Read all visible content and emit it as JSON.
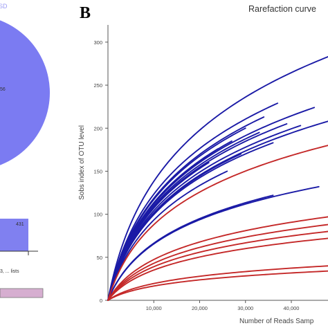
{
  "panel_label": "B",
  "left_panel": {
    "legend_fragment": "SD",
    "pie_value": "56",
    "bar_value": "431",
    "axis_caption": "3, ... lists",
    "pie_color": "#7b7bf2",
    "bar_color": "#8080f0",
    "strip_color": "#d6aed0"
  },
  "chart_data": {
    "type": "line",
    "title": "Rarefaction curve",
    "xlabel": "Number of Reads Samp",
    "ylabel": "Sobs index of OTU level",
    "xlim": [
      0,
      48000
    ],
    "ylim": [
      0,
      320
    ],
    "x_ticks": [
      "10,000",
      "20,000",
      "30,000",
      "40,000"
    ],
    "y_ticks": [
      "0",
      "50",
      "100",
      "150",
      "200",
      "250",
      "300"
    ],
    "grid": false,
    "colors": {
      "blue": "#1a1aa6",
      "red": "#c42828"
    },
    "series": [
      {
        "color": "blue",
        "x_end": 48000,
        "y_end": 283
      },
      {
        "color": "blue",
        "x_end": 37000,
        "y_end": 229
      },
      {
        "color": "blue",
        "x_end": 45000,
        "y_end": 224
      },
      {
        "color": "blue",
        "x_end": 34000,
        "y_end": 213
      },
      {
        "color": "blue",
        "x_end": 48000,
        "y_end": 208
      },
      {
        "color": "blue",
        "x_end": 39000,
        "y_end": 205
      },
      {
        "color": "blue",
        "x_end": 42000,
        "y_end": 203
      },
      {
        "color": "blue",
        "x_end": 30000,
        "y_end": 200
      },
      {
        "color": "blue",
        "x_end": 33000,
        "y_end": 195
      },
      {
        "color": "blue",
        "x_end": 27000,
        "y_end": 185
      },
      {
        "color": "blue",
        "x_end": 36000,
        "y_end": 183
      },
      {
        "color": "blue",
        "x_end": 24000,
        "y_end": 176
      },
      {
        "color": "blue",
        "x_end": 29000,
        "y_end": 170
      },
      {
        "color": "blue",
        "x_end": 22000,
        "y_end": 160
      },
      {
        "color": "blue",
        "x_end": 26000,
        "y_end": 150
      },
      {
        "color": "blue",
        "x_end": 20000,
        "y_end": 145
      },
      {
        "color": "blue",
        "x_end": 46000,
        "y_end": 132
      },
      {
        "color": "blue",
        "x_end": 36000,
        "y_end": 122
      },
      {
        "color": "red",
        "x_end": 48000,
        "y_end": 180
      },
      {
        "color": "red",
        "x_end": 48000,
        "y_end": 97
      },
      {
        "color": "red",
        "x_end": 48000,
        "y_end": 88
      },
      {
        "color": "red",
        "x_end": 48000,
        "y_end": 80
      },
      {
        "color": "red",
        "x_end": 48000,
        "y_end": 72
      },
      {
        "color": "red",
        "x_end": 48000,
        "y_end": 40
      },
      {
        "color": "red",
        "x_end": 48000,
        "y_end": 34
      }
    ]
  }
}
